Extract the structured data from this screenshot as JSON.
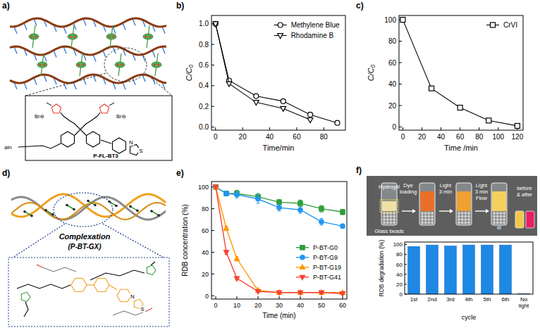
{
  "panel_labels": [
    "a)",
    "b)",
    "c)",
    "d)",
    "e)",
    "f)"
  ],
  "diagram_a": {
    "labels": [
      "ain",
      "P-FL-BT3",
      "N",
      "S",
      "Br⊖",
      "Br⊖"
    ]
  },
  "diagram_d": {
    "title": "Complexation",
    "subtitle": "(P-BT-GX)",
    "atoms": [
      "N",
      "S"
    ]
  },
  "photo_f": {
    "labels": [
      "Hydrogel",
      "Glass beads"
    ],
    "steps": [
      [
        "Dye",
        "loading"
      ],
      [
        "Light",
        "3 min"
      ],
      [
        "Light",
        "3 min",
        "Flow"
      ]
    ],
    "result": [
      "before",
      "& after"
    ]
  },
  "chart_data": [
    {
      "type": "line",
      "xlabel": "Time/min",
      "ylabel": "C/C₀",
      "xlim": [
        -3,
        96
      ],
      "xticks": [
        0,
        20,
        40,
        60,
        80
      ],
      "ylim": [
        -0.03,
        1.08
      ],
      "yticks": [
        {
          "value": 0,
          "label": "0.0"
        },
        {
          "value": 0.2,
          "label": "0.2"
        },
        {
          "value": 0.4,
          "label": "0.4"
        },
        {
          "value": 0.6,
          "label": "0.6"
        },
        {
          "value": 0.8,
          "label": "0.8"
        },
        {
          "value": 1,
          "label": "1.0"
        }
      ],
      "grid": false,
      "legend": "upper right",
      "series": [
        {
          "name": "Methylene Blue",
          "color": "#000000",
          "marker": "circle",
          "x": [
            0,
            10,
            30,
            50,
            70,
            90
          ],
          "values": [
            1.0,
            0.45,
            0.3,
            0.25,
            0.12,
            0.04
          ]
        },
        {
          "name": "Rhodamine B",
          "color": "#000000",
          "marker": "triangle-down",
          "x": [
            0,
            10,
            30,
            50,
            70
          ],
          "values": [
            1.0,
            0.42,
            0.24,
            0.18,
            0.07
          ]
        }
      ]
    },
    {
      "type": "line",
      "xlabel": "Time /min",
      "ylabel": "C/C₀",
      "xlim": [
        -4,
        126
      ],
      "xticks": [
        0,
        20,
        40,
        60,
        80,
        100,
        120
      ],
      "ylim": [
        -3,
        104
      ],
      "yticks": [
        0,
        20,
        40,
        60,
        80,
        100
      ],
      "grid": false,
      "legend": "upper right",
      "series": [
        {
          "name": "CrVI",
          "color": "#000000",
          "marker": "square",
          "x": [
            0,
            30,
            60,
            90,
            120
          ],
          "values": [
            100,
            36,
            18,
            6,
            1
          ]
        }
      ]
    },
    {
      "type": "line",
      "xlabel": "Time (min)",
      "ylabel": "RDB concentration (%)",
      "xlim": [
        -2,
        62
      ],
      "xticks": [
        0,
        10,
        20,
        30,
        40,
        50,
        60
      ],
      "ylim": [
        -3,
        105
      ],
      "yticks": [
        0,
        20,
        40,
        60,
        80,
        100
      ],
      "grid": false,
      "legend": "right",
      "series": [
        {
          "name": "P-BT-G0",
          "color": "#2e9e3a",
          "marker": "square",
          "x": [
            0,
            5,
            10,
            20,
            30,
            40,
            50,
            60
          ],
          "values": [
            100,
            94,
            94,
            91,
            86,
            85,
            80,
            77
          ],
          "errors": [
            0,
            1.5,
            3,
            3,
            2.5,
            3,
            3,
            2.5
          ]
        },
        {
          "name": "P-BT-G9",
          "color": "#2196f3",
          "marker": "circle",
          "x": [
            0,
            5,
            10,
            20,
            30,
            40,
            50,
            60
          ],
          "values": [
            100,
            94,
            93,
            89,
            81,
            79,
            68,
            64
          ],
          "errors": [
            0,
            2,
            3,
            4,
            3,
            3,
            3,
            2
          ]
        },
        {
          "name": "P-BT-G19",
          "color": "#ff9800",
          "marker": "triangle",
          "x": [
            0,
            5,
            10,
            20,
            30,
            40,
            50,
            60
          ],
          "values": [
            100,
            62,
            34,
            5,
            3,
            3,
            3,
            3
          ],
          "errors": [
            0,
            2,
            2,
            1.5,
            1,
            1,
            1,
            1
          ]
        },
        {
          "name": "P-BT-G41",
          "color": "#f44336",
          "marker": "triangle-down",
          "x": [
            0,
            5,
            10,
            20,
            30,
            40,
            50,
            60
          ],
          "values": [
            100,
            40,
            16,
            4,
            3,
            3,
            3,
            2
          ],
          "errors": [
            0,
            2,
            1.5,
            1,
            1,
            1,
            1,
            1
          ]
        }
      ]
    },
    {
      "type": "bar",
      "xlabel": "cycle",
      "ylabel": "RDB degradation (%)",
      "categories": [
        "1st",
        "2nd",
        "3rd",
        "4th",
        "5th",
        "6th",
        "No light"
      ],
      "values": [
        96,
        99,
        97,
        99,
        99,
        99,
        1
      ],
      "color": "#1e88e5",
      "ylim": [
        0,
        105
      ],
      "yticks": [
        0,
        20,
        40,
        60,
        80,
        100
      ],
      "grid": false
    }
  ]
}
